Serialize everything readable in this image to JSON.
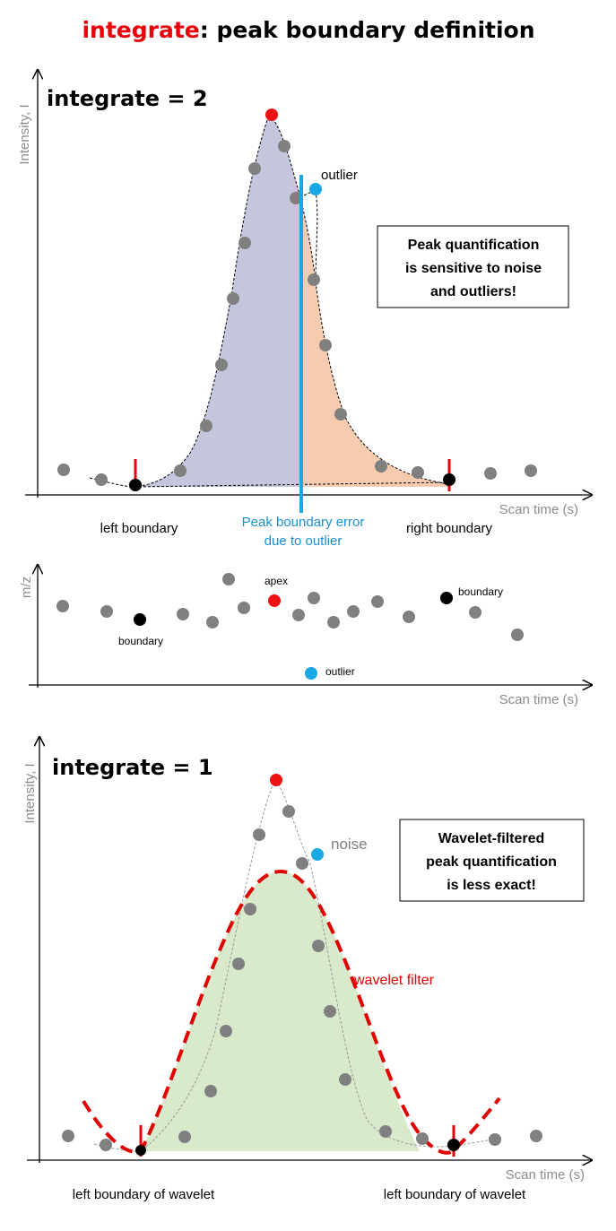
{
  "title": {
    "keyword": "integrate",
    "rest": ": peak boundary definition",
    "keyword_color": "#e8000b"
  },
  "colors": {
    "points": "#808080",
    "apex": "#ee1111",
    "outlier": "#1aa7e6",
    "boundary_marker": "#e8000b",
    "blue_area": "#c3c6dc",
    "orange_area": "#f7cbb0",
    "green_area": "#d8e9cc",
    "wavelet": "#e00000",
    "error_line": "#1aa7e6",
    "error_text": "#1a8fd0"
  },
  "panel1": {
    "title": "integrate = 2",
    "y_axis_label": "Intensity, I",
    "x_axis_label": "Scan time (s)",
    "outlier_label": "outlier",
    "callout": [
      "Peak quantification",
      "is sensitive to noise",
      "and outliers!"
    ],
    "left_boundary_label": "left boundary",
    "right_boundary_label": "right boundary",
    "error_label": [
      "Peak boundary error",
      "due to outlier"
    ]
  },
  "panel_mz": {
    "y_axis_label": "m/z",
    "x_axis_label": "Scan time (s)",
    "apex_label": "apex",
    "boundary_left_label": "boundary",
    "boundary_right_label": "boundary",
    "outlier_label": "outlier"
  },
  "panel2": {
    "title": "integrate = 1",
    "y_axis_label": "Intensity, I",
    "x_axis_label": "Scan time (s)",
    "noise_label": "noise",
    "callout": [
      "Wavelet-filtered",
      "peak quantification",
      "is less exact!"
    ],
    "wavelet_label": "wavelet filter",
    "left_boundary_label": "left boundary of wavelet",
    "right_boundary_label": "left boundary of wavelet"
  }
}
